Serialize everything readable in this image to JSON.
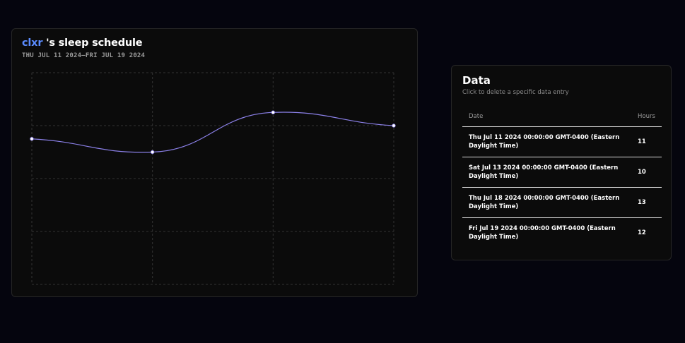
{
  "chart_card": {
    "username": "clxr",
    "title_suffix": "'s sleep schedule",
    "date_range": "THU JUL 11 2024—FRI JUL 19 2024"
  },
  "chart_data": {
    "type": "line",
    "title": "clxr's sleep schedule",
    "x": [
      "Thu Jul 11 2024",
      "Sat Jul 13 2024",
      "Thu Jul 18 2024",
      "Fri Jul 19 2024"
    ],
    "series": [
      {
        "name": "Hours",
        "values": [
          11,
          10,
          13,
          12
        ]
      }
    ],
    "ylim": [
      0,
      16
    ],
    "xlabel": "",
    "ylabel": "",
    "grid": true,
    "line_color": "#8b80e8",
    "point_color": "#ffffff"
  },
  "data_card": {
    "title": "Data",
    "subtitle": "Click to delete a specific data entry",
    "columns": [
      "Date",
      "Hours"
    ],
    "rows": [
      {
        "date": "Thu Jul 11 2024 00:00:00 GMT-0400 (Eastern Daylight Time)",
        "hours": "11"
      },
      {
        "date": "Sat Jul 13 2024 00:00:00 GMT-0400 (Eastern Daylight Time)",
        "hours": "10"
      },
      {
        "date": "Thu Jul 18 2024 00:00:00 GMT-0400 (Eastern Daylight Time)",
        "hours": "13"
      },
      {
        "date": "Fri Jul 19 2024 00:00:00 GMT-0400 (Eastern Daylight Time)",
        "hours": "12"
      }
    ]
  },
  "colors": {
    "background": "#05050e",
    "card": "#0b0b0b",
    "accent": "#5b8cff"
  }
}
